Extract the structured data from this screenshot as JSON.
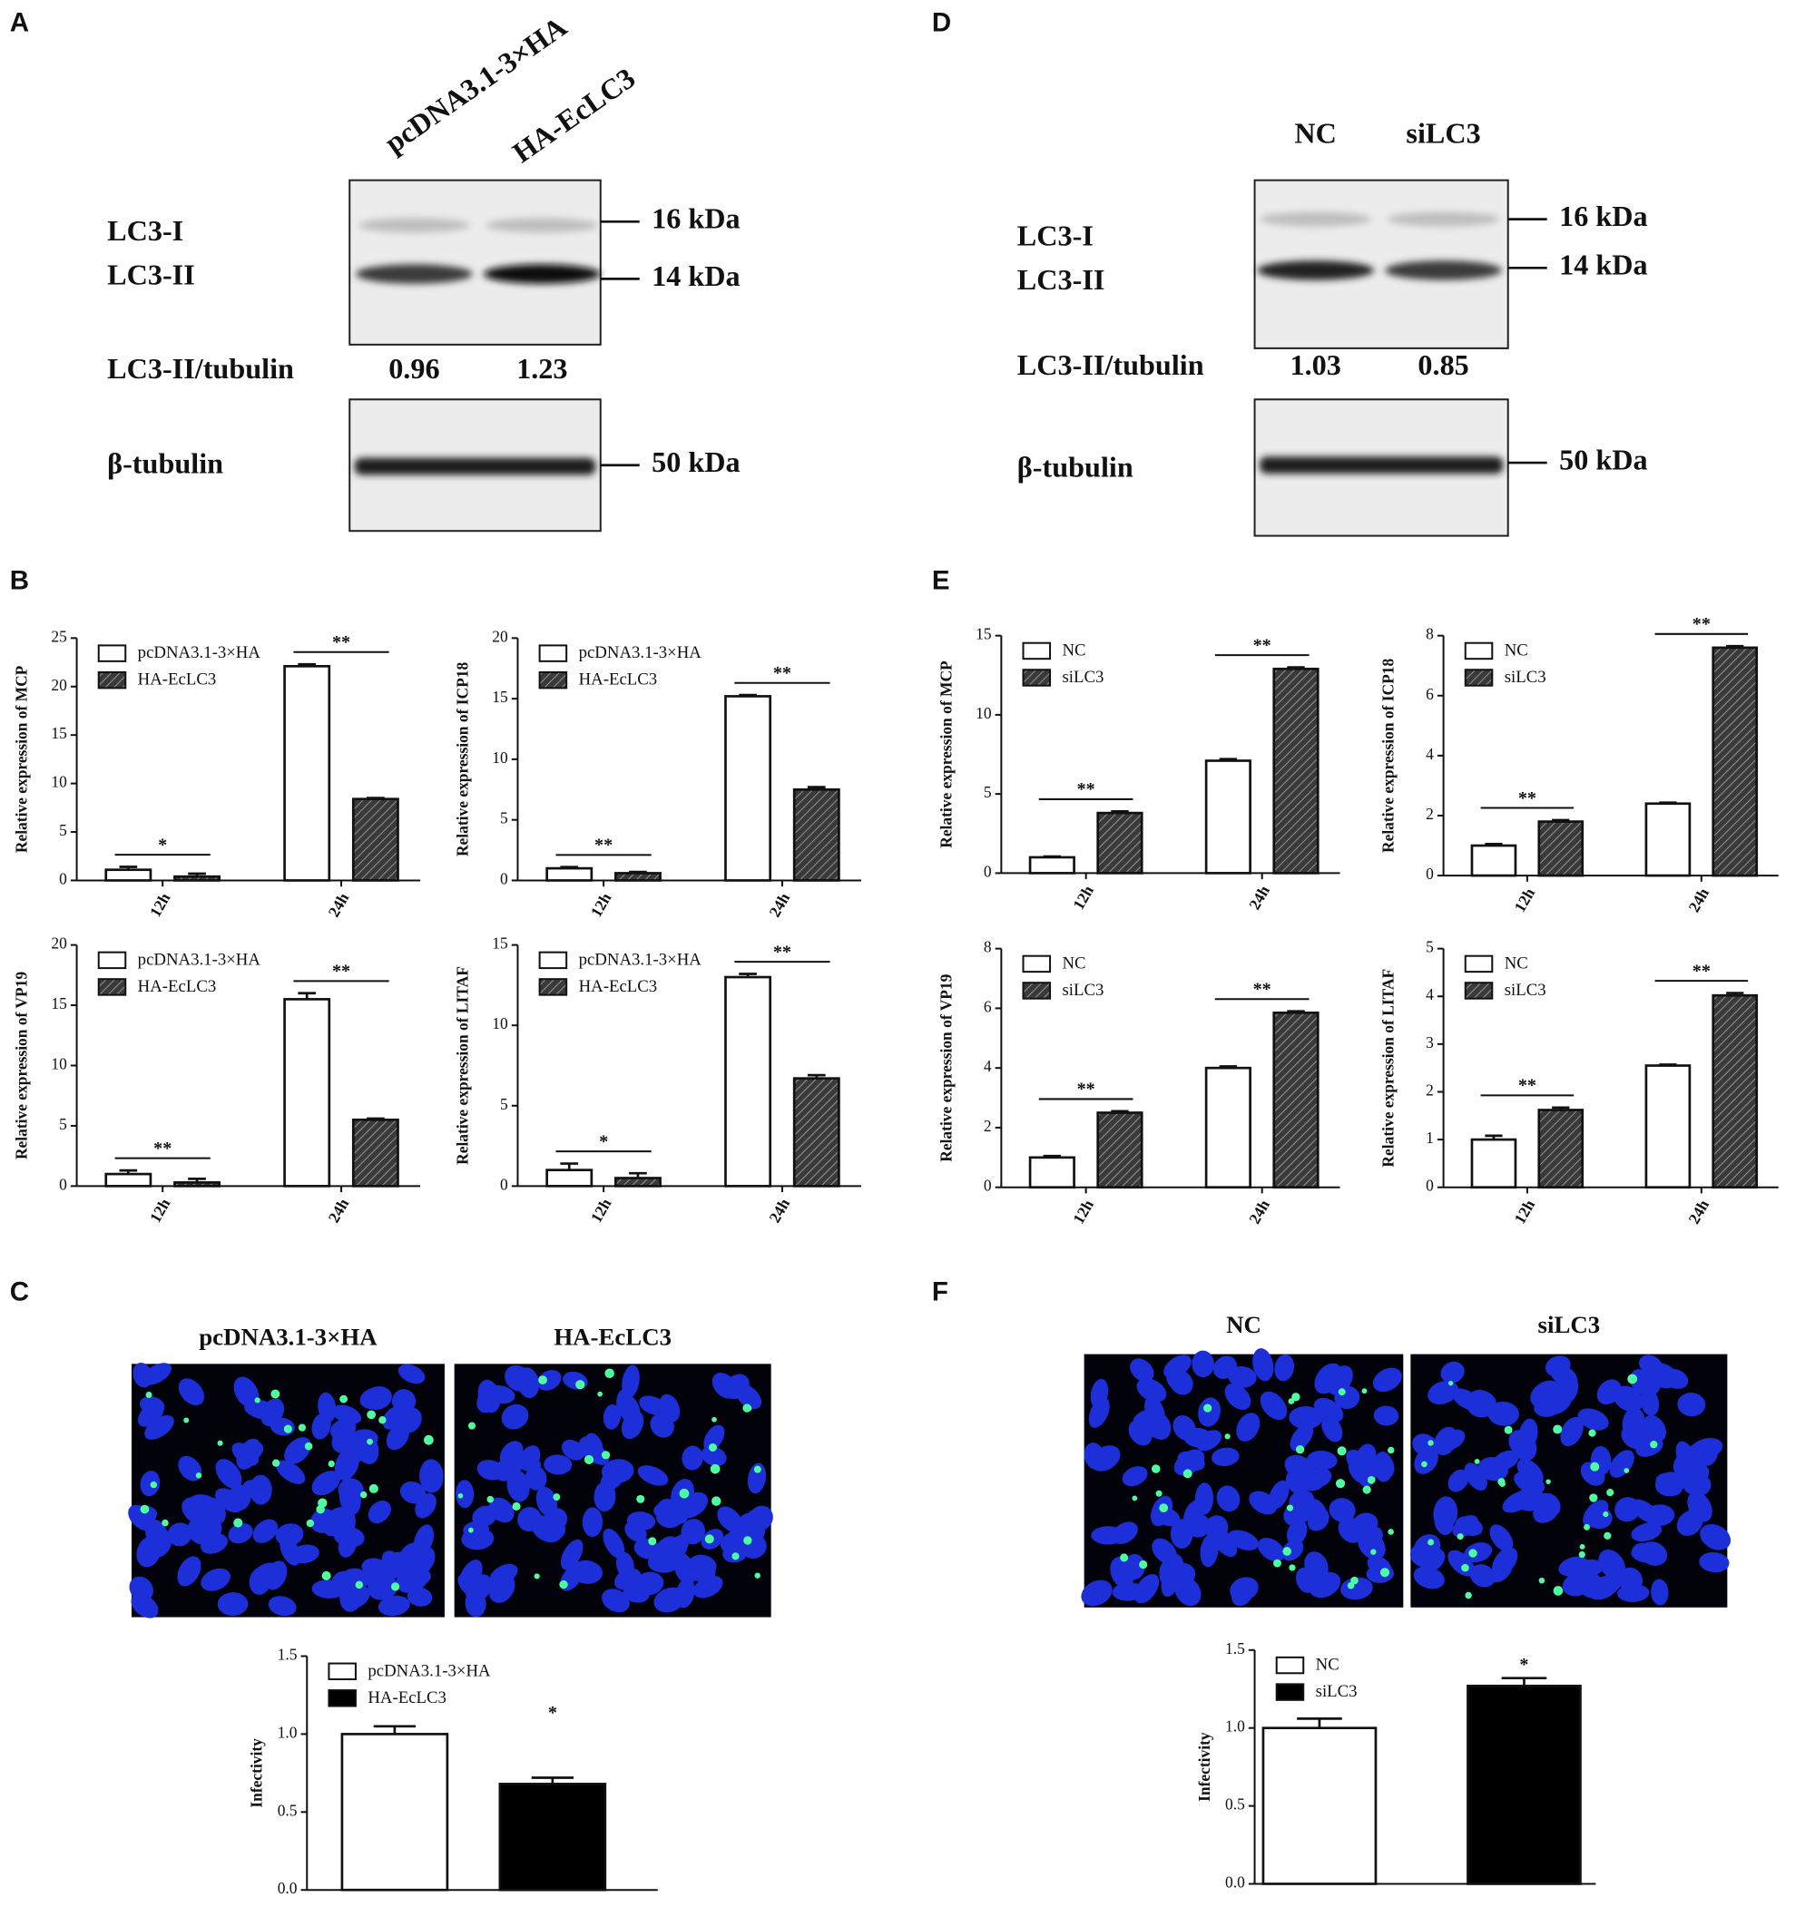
{
  "panel_labels": [
    "A",
    "B",
    "C",
    "D",
    "E",
    "F"
  ],
  "blots": [
    {
      "lanes": [
        "pcDNA3.1-3×HA",
        "HA-EcLC3"
      ],
      "bands": [
        "LC3-I",
        "LC3-II"
      ],
      "markers": [
        "16 kDa",
        "14 kDa",
        "50 kDa"
      ],
      "ratio_label": "LC3-II/tubulin",
      "ratios": [
        0.96,
        1.23
      ],
      "loading": "β-tubulin"
    },
    {
      "lanes": [
        "NC",
        "siLC3"
      ],
      "bands": [
        "LC3-I",
        "LC3-II"
      ],
      "markers": [
        "16 kDa",
        "14 kDa",
        "50 kDa"
      ],
      "ratio_label": "LC3-II/tubulin",
      "ratios": [
        1.03,
        0.85
      ],
      "loading": "β-tubulin"
    }
  ],
  "images": [
    {
      "titles": [
        "pcDNA3.1-3×HA",
        "HA-EcLC3"
      ]
    },
    {
      "titles": [
        "NC",
        "siLC3"
      ]
    }
  ],
  "chart_data": [
    {
      "type": "bar",
      "ylabel": "Relative expression of MCP",
      "categories": [
        "12h",
        "24h"
      ],
      "series": [
        {
          "name": "pcDNA3.1-3×HA",
          "color": "#ffffff",
          "values": [
            1.1,
            22.1
          ],
          "errors": [
            0.3,
            0.2
          ]
        },
        {
          "name": "HA-EcLC3",
          "color": "#3a3a3a",
          "hatch": true,
          "values": [
            0.4,
            8.4
          ],
          "errors": [
            0.3,
            0.1
          ]
        }
      ],
      "significance": [
        "*",
        "**"
      ],
      "ylim": [
        0,
        25
      ],
      "yticks": [
        0,
        5,
        10,
        15,
        20,
        25
      ]
    },
    {
      "type": "bar",
      "ylabel": "Relative expression of ICP18",
      "categories": [
        "12h",
        "24h"
      ],
      "series": [
        {
          "name": "pcDNA3.1-3×HA",
          "color": "#ffffff",
          "values": [
            1.0,
            15.2
          ],
          "errors": [
            0.1,
            0.1
          ]
        },
        {
          "name": "HA-EcLC3",
          "color": "#3a3a3a",
          "hatch": true,
          "values": [
            0.6,
            7.5
          ],
          "errors": [
            0.1,
            0.2
          ]
        }
      ],
      "significance": [
        "**",
        "**"
      ],
      "ylim": [
        0,
        20
      ],
      "yticks": [
        0,
        5,
        10,
        15,
        20
      ]
    },
    {
      "type": "bar",
      "ylabel": "Relative expression of VP19",
      "categories": [
        "12h",
        "24h"
      ],
      "series": [
        {
          "name": "pcDNA3.1-3×HA",
          "color": "#ffffff",
          "values": [
            1.0,
            15.5
          ],
          "errors": [
            0.3,
            0.5
          ]
        },
        {
          "name": "HA-EcLC3",
          "color": "#3a3a3a",
          "hatch": true,
          "values": [
            0.3,
            5.5
          ],
          "errors": [
            0.3,
            0.1
          ]
        }
      ],
      "significance": [
        "**",
        "**"
      ],
      "ylim": [
        0,
        20
      ],
      "yticks": [
        0,
        5,
        10,
        15,
        20
      ]
    },
    {
      "type": "bar",
      "ylabel": "Relative expression of LITAF",
      "categories": [
        "12h",
        "24h"
      ],
      "series": [
        {
          "name": "pcDNA3.1-3×HA",
          "color": "#ffffff",
          "values": [
            1.0,
            13.0
          ],
          "errors": [
            0.4,
            0.2
          ]
        },
        {
          "name": "HA-EcLC3",
          "color": "#3a3a3a",
          "hatch": true,
          "values": [
            0.5,
            6.7
          ],
          "errors": [
            0.3,
            0.2
          ]
        }
      ],
      "significance": [
        "*",
        "**"
      ],
      "ylim": [
        0,
        15
      ],
      "yticks": [
        0,
        5,
        10,
        15
      ]
    },
    {
      "type": "bar",
      "ylabel": "Relative expression of MCP",
      "categories": [
        "12h",
        "24h"
      ],
      "series": [
        {
          "name": "NC",
          "color": "#ffffff",
          "values": [
            1.0,
            7.1
          ],
          "errors": [
            0.05,
            0.1
          ]
        },
        {
          "name": "siLC3",
          "color": "#3a3a3a",
          "hatch": true,
          "values": [
            3.8,
            12.9
          ],
          "errors": [
            0.1,
            0.1
          ]
        }
      ],
      "significance": [
        "**",
        "**"
      ],
      "ylim": [
        0,
        15
      ],
      "yticks": [
        0,
        5,
        10,
        15
      ]
    },
    {
      "type": "bar",
      "ylabel": "Relative expression of ICP18",
      "categories": [
        "12h",
        "24h"
      ],
      "series": [
        {
          "name": "NC",
          "color": "#ffffff",
          "values": [
            1.0,
            2.4
          ],
          "errors": [
            0.05,
            0.03
          ]
        },
        {
          "name": "siLC3",
          "color": "#3a3a3a",
          "hatch": true,
          "values": [
            1.8,
            7.6
          ],
          "errors": [
            0.05,
            0.05
          ]
        }
      ],
      "significance": [
        "**",
        "**"
      ],
      "ylim": [
        0,
        8
      ],
      "yticks": [
        0,
        2,
        4,
        6,
        8
      ]
    },
    {
      "type": "bar",
      "ylabel": "Relative expression of VP19",
      "categories": [
        "12h",
        "24h"
      ],
      "series": [
        {
          "name": "NC",
          "color": "#ffffff",
          "values": [
            1.0,
            4.0
          ],
          "errors": [
            0.05,
            0.05
          ]
        },
        {
          "name": "siLC3",
          "color": "#3a3a3a",
          "hatch": true,
          "values": [
            2.5,
            5.85
          ],
          "errors": [
            0.05,
            0.05
          ]
        }
      ],
      "significance": [
        "**",
        "**"
      ],
      "ylim": [
        0,
        8
      ],
      "yticks": [
        0,
        2,
        4,
        6,
        8
      ]
    },
    {
      "type": "bar",
      "ylabel": "Relative expression of LITAF",
      "categories": [
        "12h",
        "24h"
      ],
      "series": [
        {
          "name": "NC",
          "color": "#ffffff",
          "values": [
            1.0,
            2.55
          ],
          "errors": [
            0.08,
            0.02
          ]
        },
        {
          "name": "siLC3",
          "color": "#3a3a3a",
          "hatch": true,
          "values": [
            1.62,
            4.02
          ],
          "errors": [
            0.05,
            0.05
          ]
        }
      ],
      "significance": [
        "**",
        "**"
      ],
      "ylim": [
        0,
        5
      ],
      "yticks": [
        0,
        1,
        2,
        3,
        4,
        5
      ]
    },
    {
      "type": "bar",
      "ylabel": "Infectivity",
      "categories": [
        null
      ],
      "series": [
        {
          "name": "pcDNA3.1-3×HA",
          "color": "#ffffff",
          "values": [
            1.0
          ],
          "errors": [
            0.05
          ]
        },
        {
          "name": "HA-EcLC3",
          "color": "#000000",
          "values": [
            0.68
          ],
          "errors": [
            0.04
          ]
        }
      ],
      "significance": [
        "*"
      ],
      "ylim": [
        0,
        1.5
      ],
      "yticks": [
        {
          "value": 0,
          "label": "0.0"
        },
        0.5,
        {
          "value": 1,
          "label": "1.0"
        },
        1.5
      ]
    },
    {
      "type": "bar",
      "ylabel": "Infectivity",
      "categories": [
        null
      ],
      "series": [
        {
          "name": "NC",
          "color": "#ffffff",
          "values": [
            1.0
          ],
          "errors": [
            0.06
          ]
        },
        {
          "name": "siLC3",
          "color": "#000000",
          "values": [
            1.27
          ],
          "errors": [
            0.05
          ]
        }
      ],
      "significance": [
        "*"
      ],
      "ylim": [
        0,
        1.5
      ],
      "yticks": [
        {
          "value": 0,
          "label": "0.0"
        },
        0.5,
        {
          "value": 1,
          "label": "1.0"
        },
        1.5
      ]
    }
  ]
}
